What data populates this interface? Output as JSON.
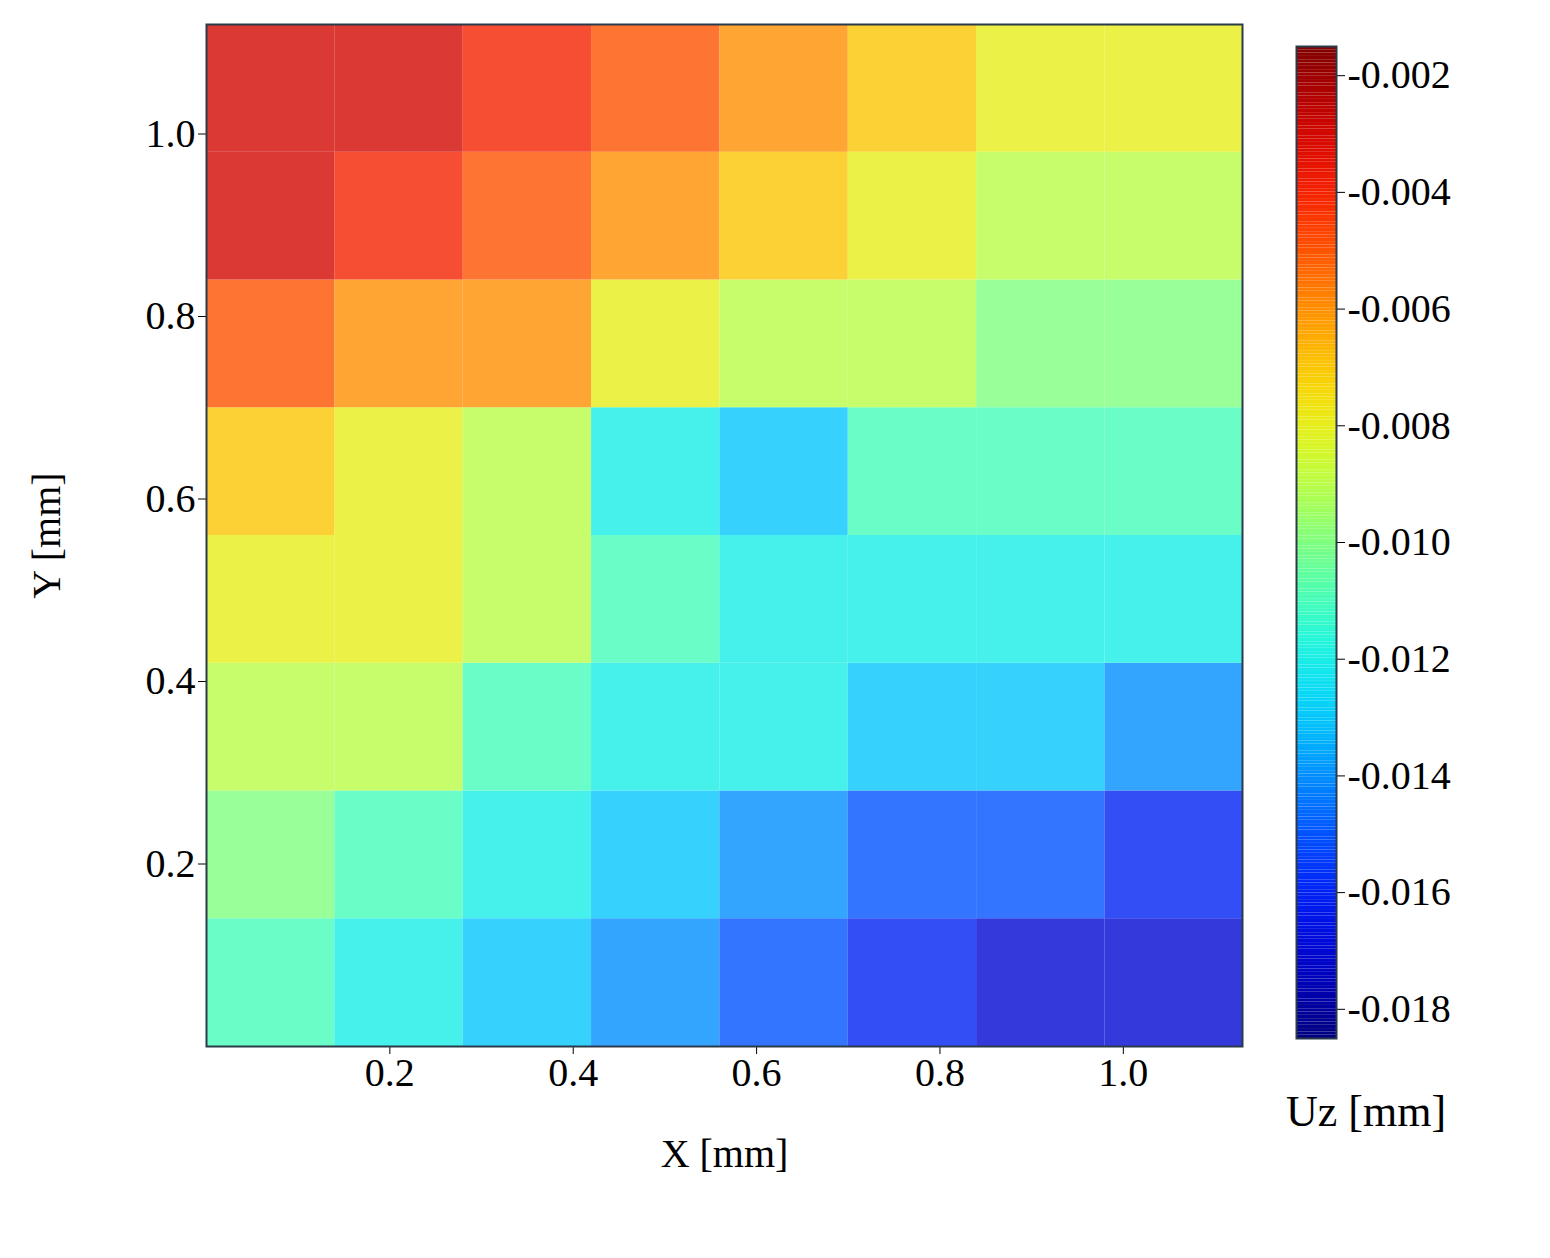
{
  "chart_data": {
    "type": "heatmap",
    "xlabel": "X [mm]",
    "ylabel": "Y [mm]",
    "xlim": [
      0,
      1.13
    ],
    "ylim": [
      0,
      1.12
    ],
    "xticks": [
      0.2,
      0.4,
      0.6,
      0.8,
      {
        "value": 1,
        "label": "1.0"
      }
    ],
    "yticks": [
      0.2,
      0.4,
      0.6,
      0.8,
      {
        "value": 1,
        "label": "1.0"
      }
    ],
    "x": [
      0.07,
      0.21,
      0.35,
      0.49,
      0.63,
      0.77,
      0.91,
      1.05
    ],
    "y": [
      0.07,
      0.21,
      0.35,
      0.49,
      0.63,
      0.77,
      0.91,
      1.05
    ],
    "values": [
      [
        -0.011,
        -0.012,
        -0.013,
        -0.014,
        -0.015,
        -0.016,
        -0.017,
        -0.017
      ],
      [
        -0.01,
        -0.011,
        -0.012,
        -0.013,
        -0.014,
        -0.015,
        -0.015,
        -0.016
      ],
      [
        -0.009,
        -0.009,
        -0.011,
        -0.012,
        -0.012,
        -0.013,
        -0.013,
        -0.014
      ],
      [
        -0.008,
        -0.008,
        -0.009,
        -0.011,
        -0.012,
        -0.012,
        -0.012,
        -0.012
      ],
      [
        -0.007,
        -0.008,
        -0.009,
        -0.012,
        -0.013,
        -0.011,
        -0.011,
        -0.011
      ],
      [
        -0.005,
        -0.006,
        -0.006,
        -0.008,
        -0.009,
        -0.009,
        -0.01,
        -0.01
      ],
      [
        -0.003,
        -0.004,
        -0.005,
        -0.006,
        -0.007,
        -0.008,
        -0.009,
        -0.009
      ],
      [
        -0.003,
        -0.003,
        -0.004,
        -0.005,
        -0.006,
        -0.007,
        -0.008,
        -0.008
      ]
    ],
    "colorbar_label": "Uz [mm]",
    "colorbar_range": [
      -0.0185,
      -0.0015
    ],
    "colorbar_ticks": [
      -0.002,
      -0.004,
      -0.006,
      -0.008,
      -0.01,
      -0.012,
      -0.014,
      -0.016,
      -0.018
    ],
    "colorbar_tick_labels": [
      "-0.002",
      "-0.004",
      "-0.006",
      "-0.008",
      "-0.010",
      "-0.012",
      "-0.014",
      "-0.016",
      "-0.018"
    ]
  }
}
